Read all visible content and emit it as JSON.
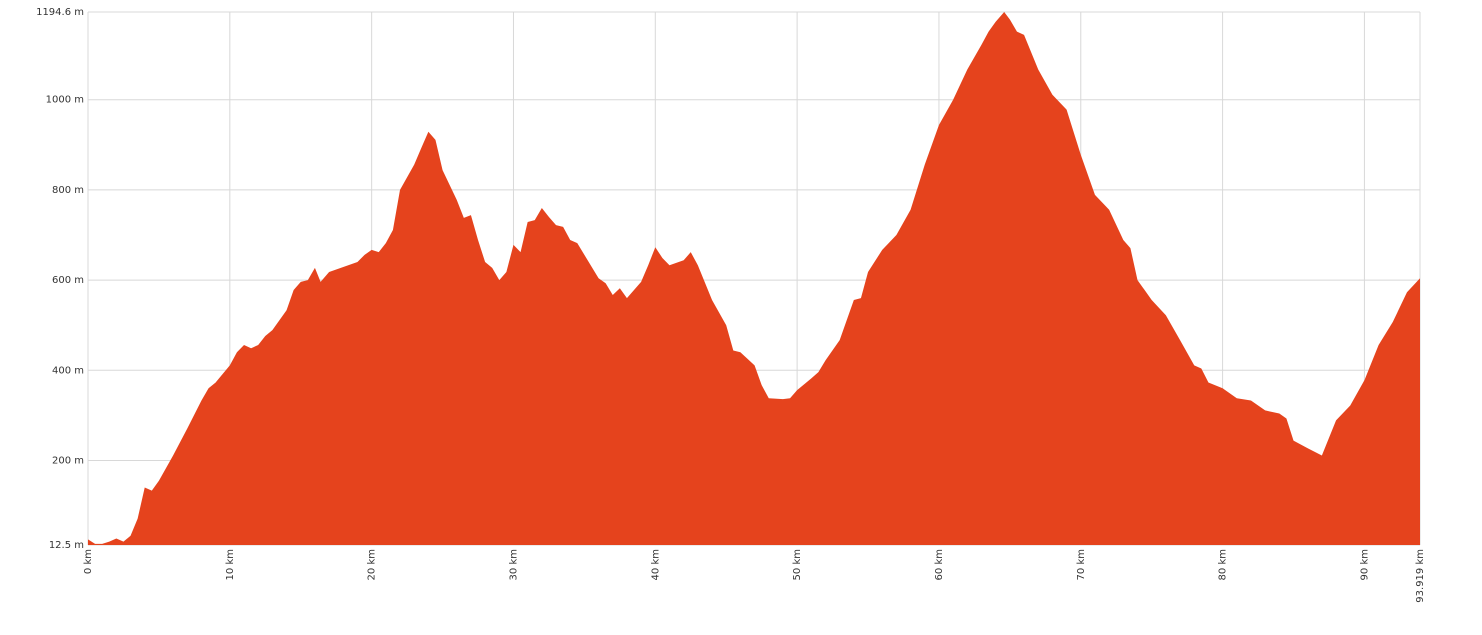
{
  "chart_data": {
    "type": "area",
    "x": [
      0,
      0.5,
      1,
      1.5,
      2,
      2.5,
      3,
      3.5,
      4,
      4.5,
      5,
      6,
      7,
      8,
      8.5,
      9,
      10,
      10.5,
      11,
      11.5,
      12,
      12.5,
      13,
      14,
      14.5,
      15,
      15.5,
      16,
      16.4,
      17,
      18,
      19,
      19.5,
      20,
      20.5,
      21,
      21.5,
      22,
      23,
      23.5,
      24,
      24.5,
      25,
      26,
      26.5,
      27,
      27.5,
      28,
      28.5,
      29,
      29.5,
      30,
      30.5,
      31,
      31.5,
      32,
      32.5,
      33,
      33.5,
      34,
      34.5,
      35,
      36,
      36.5,
      37,
      37.5,
      38,
      38.5,
      39,
      39.5,
      40,
      40.5,
      41,
      42,
      42.5,
      43,
      44,
      45,
      45.5,
      46,
      47,
      47.5,
      48,
      49,
      49.5,
      50,
      51,
      51.5,
      52,
      53,
      54,
      54.5,
      55,
      56,
      57,
      58,
      59,
      60,
      61,
      62,
      63,
      63.5,
      64,
      64.6,
      65,
      65.5,
      66,
      67,
      68,
      69,
      70,
      71,
      72,
      73,
      73.5,
      74,
      75,
      76,
      77,
      78,
      78.5,
      79,
      80,
      81,
      82,
      83,
      84,
      84.5,
      85,
      86,
      87,
      88,
      89,
      90,
      91,
      92,
      93,
      93.919
    ],
    "values": [
      25,
      15,
      15,
      20,
      27,
      20,
      33,
      71,
      140,
      133,
      155,
      211,
      271,
      333,
      360,
      373,
      411,
      440,
      456,
      449,
      456,
      476,
      489,
      533,
      578,
      596,
      600,
      627,
      596,
      618,
      629,
      640,
      656,
      667,
      662,
      682,
      711,
      800,
      856,
      893,
      929,
      911,
      844,
      778,
      738,
      744,
      689,
      640,
      627,
      600,
      618,
      678,
      662,
      729,
      733,
      760,
      740,
      722,
      718,
      689,
      682,
      656,
      604,
      593,
      567,
      582,
      560,
      578,
      596,
      633,
      673,
      649,
      633,
      644,
      662,
      633,
      556,
      500,
      444,
      440,
      411,
      367,
      338,
      336,
      338,
      356,
      382,
      396,
      422,
      467,
      556,
      560,
      618,
      667,
      700,
      756,
      856,
      944,
      1000,
      1067,
      1122,
      1151,
      1173,
      1194.6,
      1178,
      1151,
      1144,
      1067,
      1011,
      978,
      878,
      789,
      756,
      689,
      671,
      600,
      556,
      522,
      467,
      411,
      404,
      373,
      360,
      338,
      333,
      311,
      304,
      293,
      244,
      227,
      211,
      289,
      322,
      378,
      456,
      507,
      573,
      604
    ],
    "color": "#e5431d",
    "xlim": [
      0,
      93.919
    ],
    "xticks": [
      {
        "value": 0,
        "label": "0 km"
      },
      {
        "value": 10,
        "label": "10 km"
      },
      {
        "value": 20,
        "label": "20 km"
      },
      {
        "value": 30,
        "label": "30 km"
      },
      {
        "value": 40,
        "label": "40 km"
      },
      {
        "value": 50,
        "label": "50 km"
      },
      {
        "value": 60,
        "label": "60 km"
      },
      {
        "value": 70,
        "label": "70 km"
      },
      {
        "value": 80,
        "label": "80 km"
      },
      {
        "value": 90,
        "label": "90 km"
      },
      {
        "value": 93.919,
        "label": "93.919 km"
      }
    ],
    "ylim": [
      12.5,
      1194.6
    ],
    "yticks": [
      {
        "value": 12.5,
        "label": "12.5 m"
      },
      {
        "value": 200,
        "label": "200 m"
      },
      {
        "value": 400,
        "label": "400 m"
      },
      {
        "value": 600,
        "label": "600 m"
      },
      {
        "value": 800,
        "label": "800 m"
      },
      {
        "value": 1000,
        "label": "1000 m"
      },
      {
        "value": 1194.6,
        "label": "1194.6 m"
      }
    ],
    "grid": true
  }
}
